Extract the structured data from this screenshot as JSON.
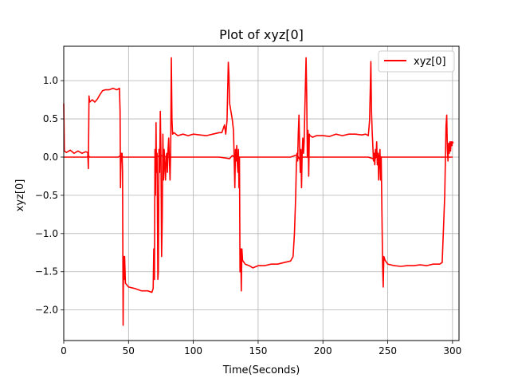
{
  "chart_data": {
    "type": "line",
    "title": "Plot of xyz[0]",
    "xlabel": "Time(Seconds)",
    "ylabel": "xyz[0]",
    "xlim": [
      0,
      305
    ],
    "ylim": [
      -2.4,
      1.45
    ],
    "xticks": [
      0,
      50,
      100,
      150,
      200,
      250,
      300
    ],
    "xtick_labels": [
      "0",
      "50",
      "100",
      "150",
      "200",
      "250",
      "300"
    ],
    "yticks": [
      -2.0,
      -1.5,
      -1.0,
      -0.5,
      0.0,
      0.5,
      1.0
    ],
    "ytick_labels": [
      "−2.0",
      "−1.5",
      "−1.0",
      "−0.5",
      "0.0",
      "0.5",
      "1.0"
    ],
    "grid": true,
    "legend": {
      "position": "top-right",
      "entries": [
        "xyz[0]"
      ]
    },
    "series": [
      {
        "name": "xyz[0]",
        "color": "#ff0000",
        "points": [
          [
            0,
            0.7
          ],
          [
            0.5,
            0.08
          ],
          [
            2,
            0.06
          ],
          [
            5,
            0.09
          ],
          [
            8,
            0.05
          ],
          [
            11,
            0.08
          ],
          [
            14,
            0.05
          ],
          [
            17,
            0.07
          ],
          [
            18.5,
            0.06
          ],
          [
            19,
            -0.15
          ],
          [
            19.5,
            0.8
          ],
          [
            20,
            0.72
          ],
          [
            22,
            0.75
          ],
          [
            24,
            0.72
          ],
          [
            26,
            0.76
          ],
          [
            28,
            0.82
          ],
          [
            30,
            0.87
          ],
          [
            32,
            0.88
          ],
          [
            35,
            0.88
          ],
          [
            38,
            0.9
          ],
          [
            41,
            0.88
          ],
          [
            43,
            0.9
          ],
          [
            43.5,
            0.6
          ],
          [
            43.8,
            -0.4
          ],
          [
            44.2,
            0.05
          ],
          [
            44.6,
            -0.05
          ],
          [
            45,
            0.05
          ],
          [
            45.4,
            -0.2
          ],
          [
            45.8,
            -2.2
          ],
          [
            46.2,
            -1.3
          ],
          [
            46.6,
            -1.6
          ],
          [
            47,
            -1.3
          ],
          [
            47.6,
            -1.65
          ],
          [
            50,
            -1.7
          ],
          [
            55,
            -1.72
          ],
          [
            60,
            -1.75
          ],
          [
            65,
            -1.75
          ],
          [
            68,
            -1.77
          ],
          [
            69,
            -1.72
          ],
          [
            69.5,
            -1.2
          ],
          [
            70,
            -1.6
          ],
          [
            70.4,
            0.1
          ],
          [
            70.8,
            -0.5
          ],
          [
            71.2,
            0.45
          ],
          [
            71.6,
            -0.2
          ],
          [
            72,
            0.05
          ],
          [
            72.6,
            -1.6
          ],
          [
            73,
            -1.5
          ],
          [
            73.5,
            0.1
          ],
          [
            74,
            -0.2
          ],
          [
            74.5,
            0.6
          ],
          [
            75,
            0.0
          ],
          [
            75.5,
            -1.3
          ],
          [
            76,
            -0.8
          ],
          [
            76.5,
            0.3
          ],
          [
            77,
            -0.3
          ],
          [
            77.5,
            0.1
          ],
          [
            78,
            -0.1
          ],
          [
            78.5,
            -0.3
          ],
          [
            79,
            0.0
          ],
          [
            79.5,
            0.05
          ],
          [
            80,
            -0.2
          ],
          [
            80.5,
            0.1
          ],
          [
            81,
            0.25
          ],
          [
            81.5,
            0.0
          ],
          [
            82,
            -0.3
          ],
          [
            82.5,
            0.1
          ],
          [
            83,
            1.3
          ],
          [
            83.5,
            0.5
          ],
          [
            84,
            0.3
          ],
          [
            85,
            0.32
          ],
          [
            88,
            0.28
          ],
          [
            92,
            0.3
          ],
          [
            96,
            0.28
          ],
          [
            100,
            0.3
          ],
          [
            105,
            0.29
          ],
          [
            110,
            0.28
          ],
          [
            115,
            0.3
          ],
          [
            120,
            0.32
          ],
          [
            122,
            0.32
          ],
          [
            124,
            0.42
          ],
          [
            125,
            0.3
          ],
          [
            126,
            0.48
          ],
          [
            127,
            1.24
          ],
          [
            127.4,
            1.1
          ],
          [
            128,
            0.7
          ],
          [
            129,
            0.6
          ],
          [
            130,
            0.5
          ],
          [
            131,
            0.35
          ],
          [
            131.5,
            0.02
          ],
          [
            132,
            -0.4
          ],
          [
            132.5,
            0.1
          ],
          [
            133,
            -0.05
          ],
          [
            133.5,
            0.15
          ],
          [
            134,
            -0.1
          ],
          [
            134.4,
            -0.2
          ],
          [
            134.8,
            0.1
          ],
          [
            135.2,
            -0.4
          ],
          [
            135.6,
            0.0
          ],
          [
            136,
            -1.5
          ],
          [
            136.5,
            -1.2
          ],
          [
            137,
            -1.75
          ],
          [
            137.5,
            -1.2
          ],
          [
            138,
            -1.35
          ],
          [
            140,
            -1.4
          ],
          [
            143,
            -1.42
          ],
          [
            146,
            -1.45
          ],
          [
            150,
            -1.42
          ],
          [
            155,
            -1.42
          ],
          [
            160,
            -1.4
          ],
          [
            165,
            -1.4
          ],
          [
            170,
            -1.38
          ],
          [
            175,
            -1.36
          ],
          [
            177,
            -1.3
          ],
          [
            178,
            -1.0
          ],
          [
            179,
            -0.5
          ],
          [
            179.5,
            -0.1
          ],
          [
            180,
            0.05
          ],
          [
            180.5,
            -0.05
          ],
          [
            181,
            0.3
          ],
          [
            181.5,
            0.55
          ],
          [
            182,
            0.15
          ],
          [
            182.5,
            -0.2
          ],
          [
            183,
            0.1
          ],
          [
            183.5,
            -0.4
          ],
          [
            184,
            0.05
          ],
          [
            184.5,
            0.25
          ],
          [
            185,
            0.05
          ],
          [
            185.5,
            0.2
          ],
          [
            186,
            0.6
          ],
          [
            187,
            1.3
          ],
          [
            187.5,
            0.8
          ],
          [
            188,
            0.0
          ],
          [
            188.5,
            0.35
          ],
          [
            189,
            -0.25
          ],
          [
            189.5,
            0.3
          ],
          [
            190,
            0.28
          ],
          [
            192,
            0.26
          ],
          [
            195,
            0.28
          ],
          [
            200,
            0.28
          ],
          [
            205,
            0.27
          ],
          [
            210,
            0.3
          ],
          [
            215,
            0.28
          ],
          [
            220,
            0.3
          ],
          [
            225,
            0.3
          ],
          [
            230,
            0.29
          ],
          [
            233,
            0.3
          ],
          [
            235,
            0.28
          ],
          [
            236,
            0.48
          ],
          [
            237,
            1.25
          ],
          [
            237.5,
            0.6
          ],
          [
            238,
            0.35
          ],
          [
            239,
            -0.05
          ],
          [
            239.5,
            0.05
          ],
          [
            240,
            -0.1
          ],
          [
            240.5,
            0.1
          ],
          [
            241,
            0.0
          ],
          [
            241.5,
            0.2
          ],
          [
            242,
            -0.1
          ],
          [
            242.5,
            0.05
          ],
          [
            243,
            -0.3
          ],
          [
            243.5,
            0.0
          ],
          [
            244,
            0.1
          ],
          [
            244.5,
            -0.3
          ],
          [
            245,
            0.0
          ],
          [
            246,
            -1.4
          ],
          [
            246.5,
            -1.7
          ],
          [
            247,
            -1.3
          ],
          [
            248,
            -1.35
          ],
          [
            250,
            -1.4
          ],
          [
            255,
            -1.42
          ],
          [
            260,
            -1.43
          ],
          [
            265,
            -1.42
          ],
          [
            270,
            -1.42
          ],
          [
            275,
            -1.41
          ],
          [
            280,
            -1.42
          ],
          [
            285,
            -1.4
          ],
          [
            290,
            -1.4
          ],
          [
            292,
            -1.38
          ],
          [
            294,
            -0.5
          ],
          [
            295,
            0.4
          ],
          [
            295.5,
            0.55
          ],
          [
            296,
            0.1
          ],
          [
            296.5,
            -0.05
          ],
          [
            297,
            0.18
          ],
          [
            297.5,
            0.05
          ],
          [
            298,
            0.2
          ],
          [
            298.5,
            0.08
          ],
          [
            299,
            0.2
          ],
          [
            299.5,
            0.15
          ],
          [
            300,
            0.2
          ],
          [
            300.5,
            0.18
          ]
        ]
      },
      {
        "name": "",
        "color": "#ff0000",
        "points": [
          [
            0,
            0.0
          ],
          [
            10,
            0.0
          ],
          [
            18,
            0.0
          ],
          [
            19,
            0.02
          ],
          [
            20,
            0.0
          ],
          [
            30,
            0.0
          ],
          [
            40,
            0.0
          ],
          [
            42,
            0.0
          ],
          [
            44,
            0.02
          ],
          [
            46,
            0.0
          ],
          [
            60,
            0.0
          ],
          [
            70,
            0.0
          ],
          [
            75,
            0.02
          ],
          [
            80,
            0.0
          ],
          [
            100,
            0.0
          ],
          [
            120,
            0.0
          ],
          [
            128,
            -0.02
          ],
          [
            130,
            0.02
          ],
          [
            132,
            0.0
          ],
          [
            140,
            0.0
          ],
          [
            160,
            0.0
          ],
          [
            175,
            0.0
          ],
          [
            180,
            0.03
          ],
          [
            182,
            -0.03
          ],
          [
            184,
            0.0
          ],
          [
            200,
            0.0
          ],
          [
            220,
            0.0
          ],
          [
            235,
            0.0
          ],
          [
            240,
            -0.03
          ],
          [
            242,
            0.03
          ],
          [
            245,
            0.0
          ],
          [
            260,
            0.0
          ],
          [
            280,
            0.0
          ],
          [
            295,
            0.0
          ],
          [
            300,
            0.0
          ]
        ]
      }
    ]
  }
}
